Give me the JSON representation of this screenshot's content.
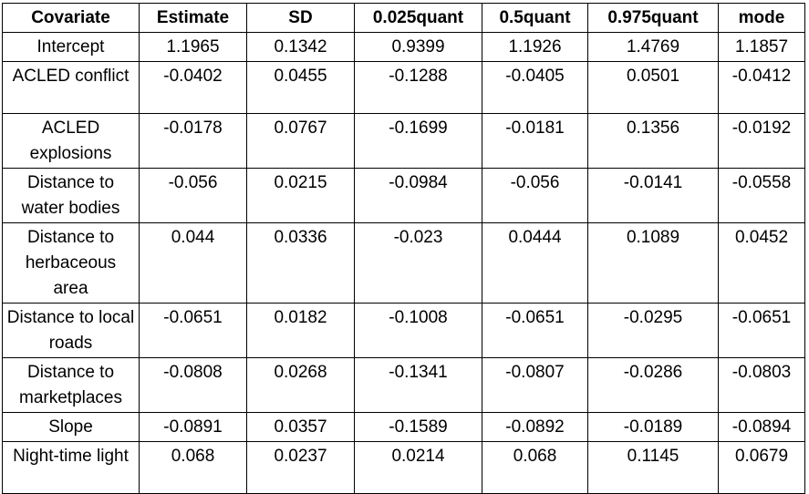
{
  "table": {
    "headers": [
      "Covariate",
      "Estimate",
      "SD",
      "0.025quant",
      "0.5quant",
      "0.975quant",
      "mode"
    ],
    "rows": [
      {
        "covariate": "Intercept",
        "estimate": "1.1965",
        "sd": "0.1342",
        "q025": "0.9399",
        "q05": "1.1926",
        "q975": "1.4769",
        "mode": "1.1857"
      },
      {
        "covariate": "ACLED conflict",
        "estimate": "-0.0402",
        "sd": "0.0455",
        "q025": "-0.1288",
        "q05": "-0.0405",
        "q975": "0.0501",
        "mode": "-0.0412"
      },
      {
        "covariate": "ACLED explosions",
        "estimate": "-0.0178",
        "sd": "0.0767",
        "q025": "-0.1699",
        "q05": "-0.0181",
        "q975": "0.1356",
        "mode": "-0.0192"
      },
      {
        "covariate": "Distance to water bodies",
        "estimate": "-0.056",
        "sd": "0.0215",
        "q025": "-0.0984",
        "q05": "-0.056",
        "q975": "-0.0141",
        "mode": "-0.0558"
      },
      {
        "covariate": "Distance to herbaceous area",
        "estimate": "0.044",
        "sd": "0.0336",
        "q025": "-0.023",
        "q05": "0.0444",
        "q975": "0.1089",
        "mode": "0.0452"
      },
      {
        "covariate": "Distance to local roads",
        "estimate": "-0.0651",
        "sd": "0.0182",
        "q025": "-0.1008",
        "q05": "-0.0651",
        "q975": "-0.0295",
        "mode": "-0.0651"
      },
      {
        "covariate": "Distance to marketplaces",
        "estimate": "-0.0808",
        "sd": "0.0268",
        "q025": "-0.1341",
        "q05": "-0.0807",
        "q975": "-0.0286",
        "mode": "-0.0803"
      },
      {
        "covariate": "Slope",
        "estimate": "-0.0891",
        "sd": "0.0357",
        "q025": "-0.1589",
        "q05": "-0.0892",
        "q975": "-0.0189",
        "mode": "-0.0894"
      },
      {
        "covariate": "Night-time light",
        "estimate": "0.068",
        "sd": "0.0237",
        "q025": "0.0214",
        "q05": "0.068",
        "q975": "0.1145",
        "mode": "0.0679"
      }
    ]
  }
}
